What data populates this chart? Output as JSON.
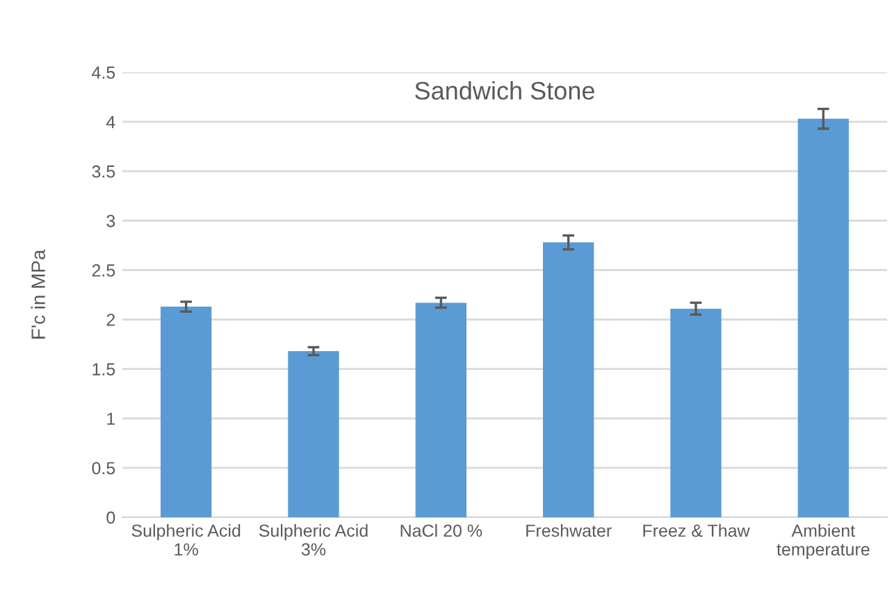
{
  "chart_data": {
    "type": "bar",
    "title": "Sandwich Stone",
    "ylabel": "F'c in MPa",
    "categories": [
      "Sulpheric Acid\n1%",
      "Sulpheric Acid\n3%",
      "NaCl 20 %",
      "Freshwater",
      "Freez & Thaw",
      "Ambient\ntemperature"
    ],
    "values": [
      2.13,
      1.68,
      2.17,
      2.78,
      2.11,
      4.03
    ],
    "errors": [
      0.05,
      0.04,
      0.05,
      0.07,
      0.06,
      0.1
    ],
    "color": "#5b9bd5",
    "ylim": [
      0,
      4.5
    ],
    "yticks": [
      0,
      0.5,
      1,
      1.5,
      2,
      2.5,
      3,
      3.5,
      4,
      4.5
    ],
    "grid": "y"
  }
}
